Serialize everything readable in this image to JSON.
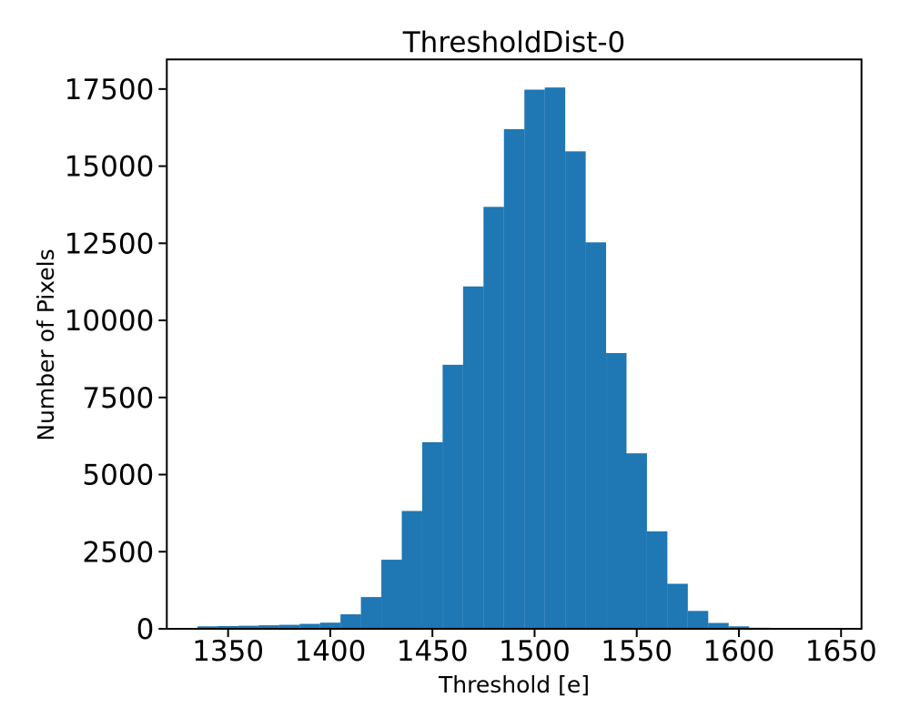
{
  "figure": {
    "background": "#ffffff"
  },
  "chart_data": {
    "type": "bar",
    "subtype": "histogram",
    "title": "ThresholdDist-0",
    "xlabel": "Threshold [e]",
    "ylabel": "Number of Pixels",
    "bar_color": "#1f77b4",
    "axis_color": "#000000",
    "bin_start": 1335,
    "bin_width": 10,
    "counts": [
      80,
      90,
      100,
      115,
      130,
      160,
      200,
      470,
      1030,
      2240,
      3820,
      6050,
      8560,
      11100,
      13680,
      16200,
      17480,
      17550,
      15480,
      12530,
      8940,
      5690,
      3160,
      1460,
      580,
      190,
      80,
      35,
      25,
      20,
      15
    ],
    "xlim": [
      1320,
      1660
    ],
    "ylim": [
      0,
      18460
    ],
    "xticks": [
      "1350",
      "1400",
      "1450",
      "1500",
      "1550",
      "1600",
      "1650"
    ],
    "yticks": [
      "0",
      "2500",
      "5000",
      "7500",
      "10000",
      "12500",
      "15000",
      "17500"
    ],
    "grid": false,
    "legend": null
  }
}
